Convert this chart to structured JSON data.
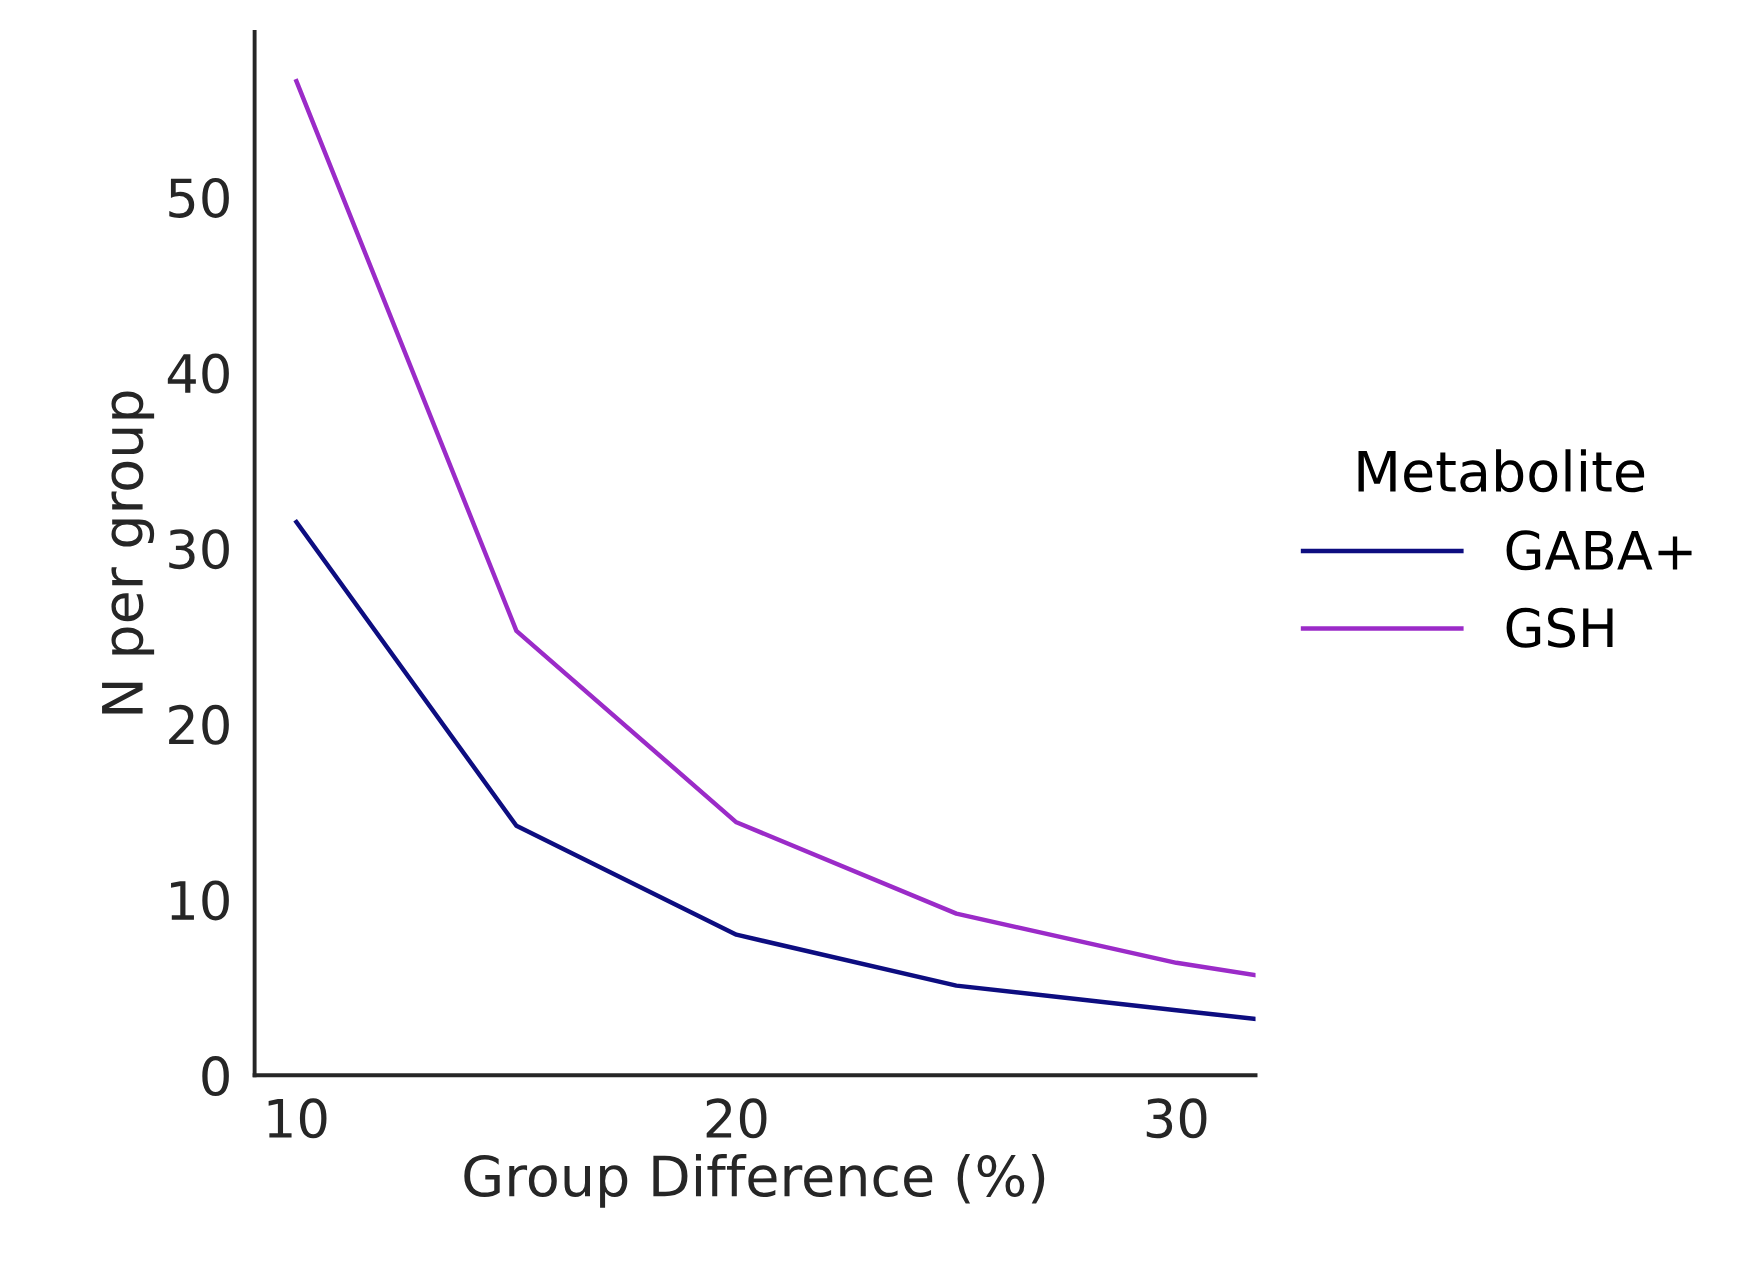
{
  "chart_data": {
    "type": "line",
    "xlabel": "Group Difference (%)",
    "ylabel": "N per group",
    "legend_title": "Metabolite",
    "x": [
      10,
      15,
      20,
      25,
      30,
      31.8
    ],
    "series": [
      {
        "name": "GABA+",
        "color": "#0d0d80",
        "values": [
          31.5,
          14.2,
          8.0,
          5.1,
          3.7,
          3.2
        ]
      },
      {
        "name": "GSH",
        "color": "#9b2bc8",
        "values": [
          56.6,
          25.3,
          14.4,
          9.2,
          6.4,
          5.7
        ]
      }
    ],
    "xlim": [
      9.05,
      31.8
    ],
    "ylim": [
      0,
      59.4
    ],
    "xticks": [
      10,
      20,
      30
    ],
    "yticks": [
      0,
      10,
      20,
      30,
      40,
      50
    ],
    "grid": false,
    "legend": "right",
    "line_style": "solid",
    "marker": "none"
  }
}
